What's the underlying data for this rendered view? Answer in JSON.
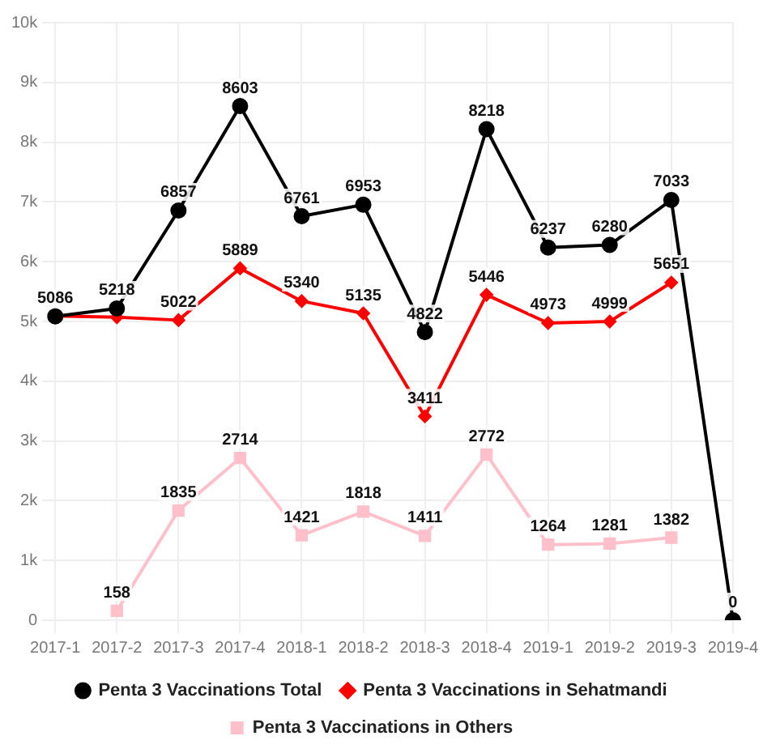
{
  "chart_data": {
    "type": "line",
    "categories": [
      "2017-1",
      "2017-2",
      "2017-3",
      "2017-4",
      "2018-1",
      "2018-2",
      "2018-3",
      "2018-4",
      "2019-1",
      "2019-2",
      "2019-3",
      "2019-4"
    ],
    "series": [
      {
        "name": "Penta 3 Vaccinations Total",
        "color": "#000000",
        "marker": "circle",
        "values": [
          5086,
          5218,
          6857,
          8603,
          6761,
          6953,
          4822,
          8218,
          6237,
          6280,
          7033,
          0
        ],
        "value_labels": [
          "5086",
          "5218",
          "6857",
          "8603",
          "6761",
          "6953",
          "4822",
          "8218",
          "6237",
          "6280",
          "7033",
          "0"
        ]
      },
      {
        "name": "Penta 3 Vaccinations in Sehatmandi",
        "color": "#ff0000",
        "marker": "diamond",
        "values": [
          5090,
          5070,
          5022,
          5889,
          5340,
          5135,
          3411,
          5446,
          4973,
          4999,
          5651,
          null
        ],
        "value_labels": [
          null,
          null,
          "5022",
          "5889",
          "5340",
          "5135",
          "3411",
          "5446",
          "4973",
          "4999",
          "5651",
          null
        ]
      },
      {
        "name": "Penta 3 Vaccinations in Others",
        "color": "#ffc0cb",
        "marker": "square",
        "values": [
          null,
          158,
          1835,
          2714,
          1421,
          1818,
          1411,
          2772,
          1264,
          1281,
          1382,
          null
        ],
        "value_labels": [
          null,
          "158",
          "1835",
          "2714",
          "1421",
          "1818",
          "1411",
          "2772",
          "1264",
          "1281",
          "1382",
          null
        ]
      }
    ],
    "ylim": [
      0,
      10000
    ],
    "yticks": [
      0,
      {
        "value": 1000,
        "label": "1k"
      },
      {
        "value": 2000,
        "label": "2k"
      },
      {
        "value": 3000,
        "label": "3k"
      },
      {
        "value": 4000,
        "label": "4k"
      },
      {
        "value": 5000,
        "label": "5k"
      },
      {
        "value": 6000,
        "label": "6k"
      },
      {
        "value": 7000,
        "label": "7k"
      },
      {
        "value": 8000,
        "label": "8k"
      },
      {
        "value": 9000,
        "label": "9k"
      },
      {
        "value": 10000,
        "label": "10k"
      }
    ],
    "grid": true,
    "legend": "bottom"
  }
}
